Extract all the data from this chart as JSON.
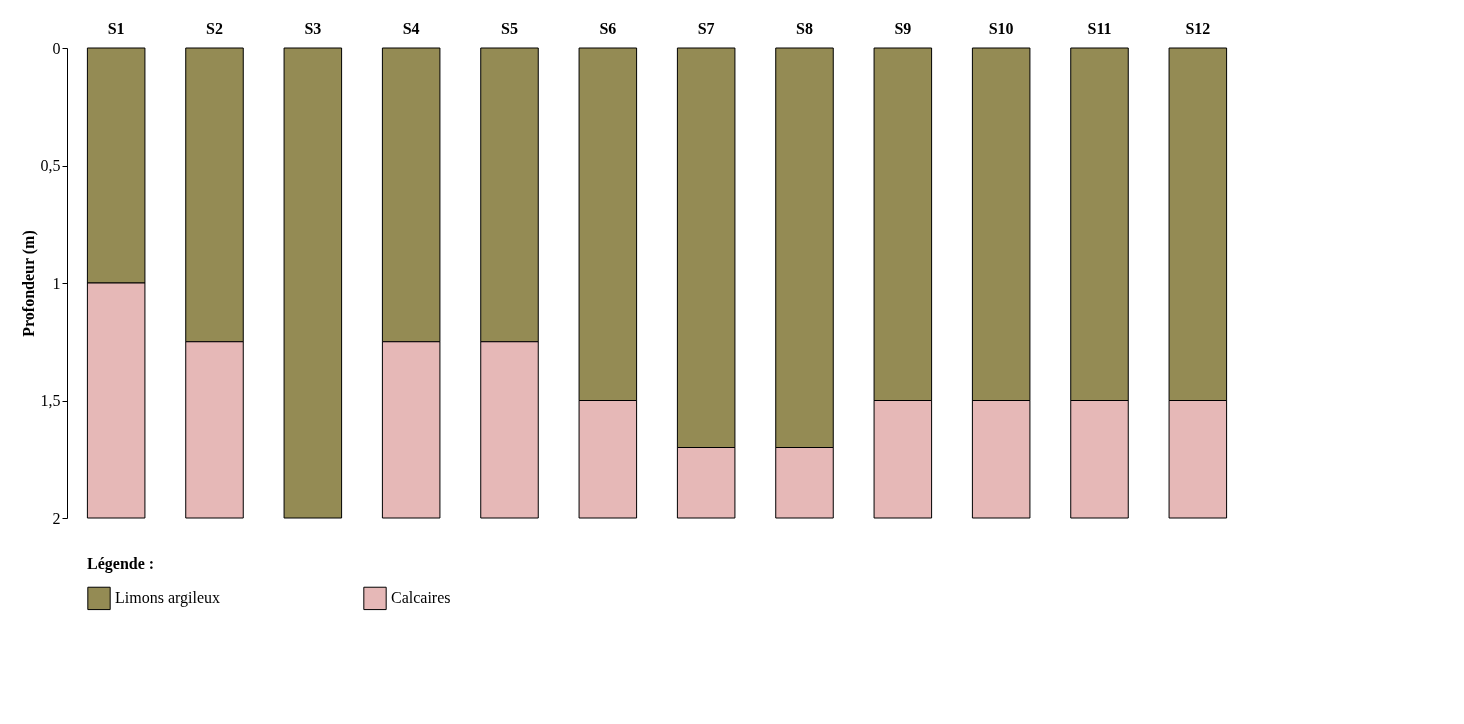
{
  "chart_data": {
    "type": "bar",
    "stacked": true,
    "ylabel": "Profondeur (m)",
    "legend_title": "Légende :",
    "categories": [
      "S1",
      "S2",
      "S3",
      "S4",
      "S5",
      "S6",
      "S7",
      "S8",
      "S9",
      "S10",
      "S11",
      "S12"
    ],
    "series": [
      {
        "name": "Limons argileux",
        "color": "#948b54",
        "values": [
          1.0,
          1.25,
          2.0,
          1.25,
          1.25,
          1.5,
          1.7,
          1.7,
          1.5,
          1.5,
          1.5,
          1.5
        ]
      },
      {
        "name": "Calcaires",
        "color": "#e6b8b7",
        "values": [
          1.0,
          0.75,
          null,
          0.75,
          0.75,
          0.5,
          0.3,
          0.3,
          0.5,
          0.5,
          0.5,
          0.5
        ]
      }
    ],
    "ylim": [
      2,
      0
    ],
    "yticks": [
      0,
      {
        "value": 0.5,
        "label": "0,5"
      },
      1,
      {
        "value": 1.5,
        "label": "1,5"
      },
      2
    ],
    "grid": false,
    "legend": "bottom"
  }
}
